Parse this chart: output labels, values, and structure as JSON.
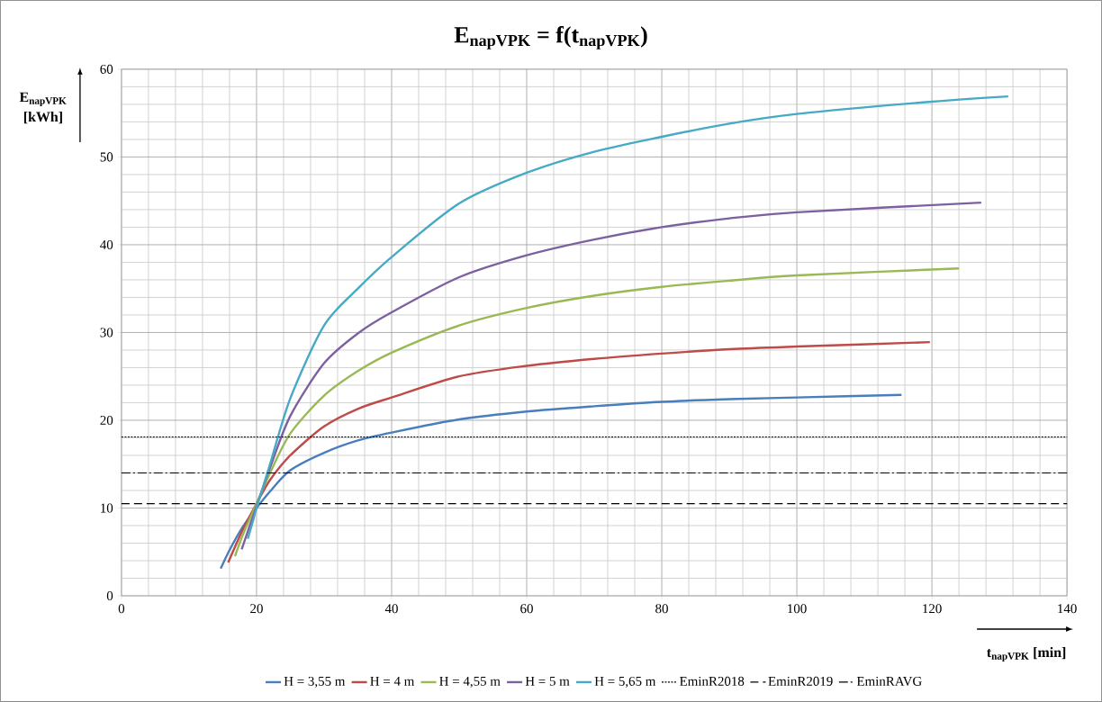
{
  "chart_data": {
    "type": "line",
    "title": "E$_{napVPK}$ = f(t$_{napVPK}$)",
    "xlabel": "t$_{napVPK}$ [min]",
    "ylabel": "E$_{napVPK}$ [kWh]",
    "xlim": [
      0,
      140
    ],
    "ylim": [
      0,
      60
    ],
    "xticks": [
      0,
      20,
      40,
      60,
      80,
      100,
      120,
      140
    ],
    "yticks": [
      0,
      10,
      20,
      30,
      40,
      50,
      60
    ],
    "grid": true,
    "legend": "bottom",
    "marker": "none",
    "line_style": "solid",
    "series": [
      {
        "name": "H = 3,55 m",
        "color": "#4a7ebb",
        "x": [
          14.7,
          16,
          18,
          20,
          22,
          25,
          30,
          35,
          40,
          50,
          60,
          70,
          80,
          90,
          100,
          115.5
        ],
        "values": [
          3.1,
          5.2,
          7.9,
          10,
          11.9,
          14.3,
          16.3,
          17.7,
          18.6,
          20.1,
          21.0,
          21.6,
          22.1,
          22.4,
          22.6,
          22.9
        ]
      },
      {
        "name": "H = 4 m",
        "color": "#be4b48",
        "x": [
          15.8,
          18,
          20,
          22,
          25,
          30,
          35,
          40,
          50,
          60,
          70,
          80,
          90,
          100,
          119.7
        ],
        "values": [
          3.8,
          7.6,
          10.5,
          13.2,
          16.0,
          19.3,
          21.3,
          22.6,
          25.0,
          26.2,
          27.0,
          27.6,
          28.1,
          28.4,
          28.9
        ]
      },
      {
        "name": "H = 4,55 m",
        "color": "#98b954",
        "x": [
          16.8,
          18,
          20,
          22,
          25,
          30,
          35,
          40,
          50,
          60,
          70,
          80,
          90,
          100,
          124
        ],
        "values": [
          4.5,
          7.0,
          10.5,
          14.0,
          18.5,
          22.8,
          25.6,
          27.7,
          30.8,
          32.8,
          34.2,
          35.2,
          35.9,
          36.5,
          37.3
        ]
      },
      {
        "name": "H = 5 m",
        "color": "#7d60a0",
        "x": [
          17.8,
          19,
          20,
          22,
          25,
          30,
          35,
          40,
          50,
          60,
          70,
          80,
          90,
          100,
          127.3
        ],
        "values": [
          5.3,
          8.0,
          10.2,
          14.6,
          20.5,
          26.5,
          29.9,
          32.3,
          36.3,
          38.8,
          40.6,
          42.0,
          43.0,
          43.7,
          44.8
        ]
      },
      {
        "name": "H = 5,65 m",
        "color": "#46aac5",
        "x": [
          18.7,
          19.5,
          20,
          22,
          25,
          30,
          35,
          40,
          50,
          60,
          70,
          80,
          90,
          100,
          120,
          131.3
        ],
        "values": [
          6.5,
          8.6,
          10.0,
          15.0,
          22.5,
          30.8,
          35.0,
          38.6,
          44.7,
          48.2,
          50.6,
          52.3,
          53.8,
          54.9,
          56.3,
          56.9
        ]
      }
    ],
    "ref_lines": [
      {
        "axis": "y",
        "value": 18.1,
        "label": "EminR2018",
        "color": "#000000",
        "line_style": "dotted"
      },
      {
        "axis": "y",
        "value": 10.5,
        "label": "EminR2019",
        "color": "#000000",
        "line_style": "dashed"
      },
      {
        "axis": "y",
        "value": 14,
        "label": "EminRAVG",
        "color": "#000000",
        "line_style": "dashdot"
      }
    ]
  }
}
